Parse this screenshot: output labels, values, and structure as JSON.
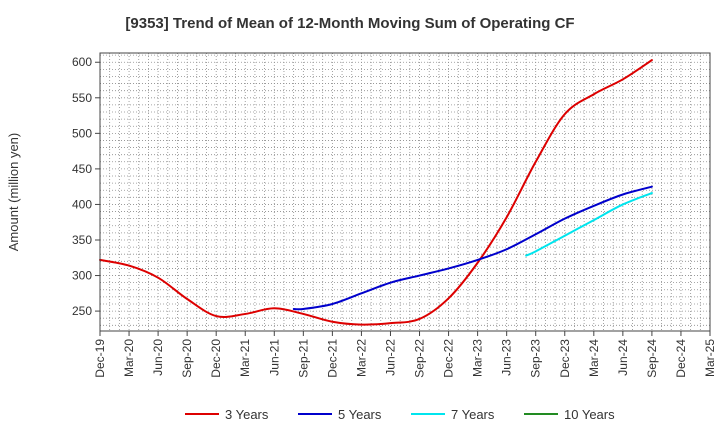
{
  "chart_data": {
    "type": "line",
    "title": "[9353]  Trend of Mean of 12-Month Moving Sum of Operating CF",
    "xlabel": "",
    "ylabel": "Amount (million yen)",
    "categories": [
      "Dec-19",
      "Mar-20",
      "Jun-20",
      "Sep-20",
      "Dec-20",
      "Mar-21",
      "Jun-21",
      "Sep-21",
      "Dec-21",
      "Mar-22",
      "Jun-22",
      "Sep-22",
      "Dec-22",
      "Mar-23",
      "Jun-23",
      "Sep-23",
      "Dec-23",
      "Mar-24",
      "Jun-24",
      "Sep-24",
      "Dec-24",
      "Mar-25"
    ],
    "yticks": [
      250,
      300,
      350,
      400,
      450,
      500,
      550,
      600
    ],
    "ylim": [
      222,
      613
    ],
    "grid": true,
    "legend_position": "bottom",
    "series": [
      {
        "name": "3 Years",
        "color": "#dd0000",
        "points": [
          [
            0,
            322
          ],
          [
            1,
            314
          ],
          [
            2,
            297
          ],
          [
            3,
            267
          ],
          [
            4,
            243
          ],
          [
            5,
            246
          ],
          [
            6,
            254
          ],
          [
            7,
            246
          ],
          [
            8,
            235
          ],
          [
            9,
            231
          ],
          [
            10,
            233
          ],
          [
            11,
            239
          ],
          [
            12,
            268
          ],
          [
            13,
            318
          ],
          [
            14,
            382
          ],
          [
            15,
            460
          ],
          [
            16,
            527
          ],
          [
            17,
            555
          ],
          [
            18,
            576
          ],
          [
            19,
            603
          ]
        ]
      },
      {
        "name": "5 Years",
        "color": "#0000cc",
        "points": [
          [
            6.67,
            253
          ],
          [
            7,
            253
          ],
          [
            8,
            260
          ],
          [
            9,
            275
          ],
          [
            10,
            290
          ],
          [
            11,
            300
          ],
          [
            12,
            310
          ],
          [
            13,
            322
          ],
          [
            14,
            337
          ],
          [
            15,
            358
          ],
          [
            16,
            380
          ],
          [
            17,
            398
          ],
          [
            18,
            414
          ],
          [
            19,
            425
          ]
        ]
      },
      {
        "name": "7 Years",
        "color": "#00e5ee",
        "points": [
          [
            14.67,
            328
          ],
          [
            15,
            334
          ],
          [
            16,
            356
          ],
          [
            17,
            378
          ],
          [
            18,
            400
          ],
          [
            19,
            416
          ]
        ]
      },
      {
        "name": "10 Years",
        "color": "#228b22",
        "points": []
      }
    ]
  }
}
